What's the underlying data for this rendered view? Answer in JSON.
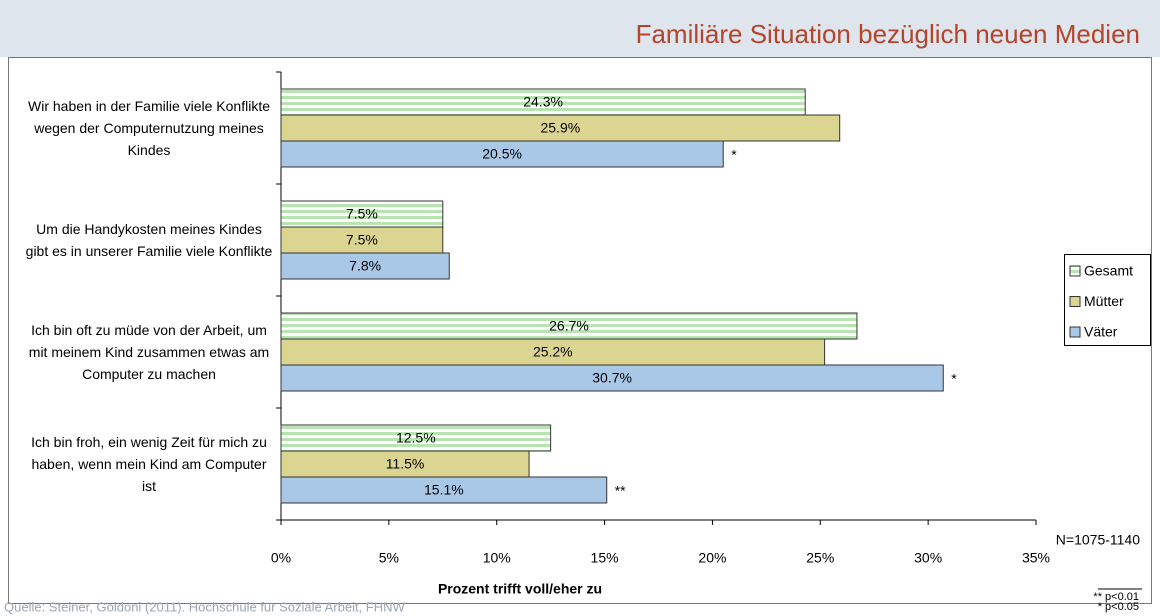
{
  "chart_data": {
    "type": "hbar",
    "title": "Familiäre Situation bezüglich neuen Medien",
    "categories": [
      "Wir haben in der Familie viele Konflikte wegen der Computernutzung meines Kindes",
      "Um die Handykosten meines Kindes gibt es in unserer Familie viele Konflikte",
      "Ich bin oft zu müde von der Arbeit, um mit meinem Kind zusammen etwas am Computer zu machen",
      "Ich bin froh, ein wenig Zeit für mich zu haben, wenn mein Kind am Computer ist"
    ],
    "series": [
      {
        "name": "Gesamt",
        "color": "#b8e4b2",
        "pattern": "stripes",
        "values": [
          24.3,
          7.5,
          26.7,
          12.5
        ],
        "value_labels": [
          "24.3%",
          "7.5%",
          "26.7%",
          "12.5%"
        ]
      },
      {
        "name": "Mütter",
        "color": "#dcd592",
        "values": [
          25.9,
          7.5,
          25.2,
          11.5
        ],
        "value_labels": [
          "25.9%",
          "7.5%",
          "25.2%",
          "11.5%"
        ]
      },
      {
        "name": "Väter",
        "color": "#a9c8e8",
        "values": [
          20.5,
          7.8,
          30.7,
          15.1
        ],
        "value_labels": [
          "20.5%",
          "7.8%",
          "30.7%",
          "15.1%"
        ],
        "markers": [
          "*",
          null,
          "*",
          "**"
        ]
      }
    ],
    "xlim": [
      0,
      35
    ],
    "xticks": [
      {
        "value": 0,
        "label": "0%"
      },
      {
        "value": 5,
        "label": "5%"
      },
      {
        "value": 10,
        "label": "10%"
      },
      {
        "value": 15,
        "label": "15%"
      },
      {
        "value": 20,
        "label": "20%"
      },
      {
        "value": 25,
        "label": "25%"
      },
      {
        "value": 30,
        "label": "30%"
      },
      {
        "value": 35,
        "label": "35%"
      }
    ],
    "x_label": "Prozent trifft voll/eher zu",
    "annotation": "N=1075-1140",
    "source": "Quelle: Steiner, Goldoni (2011). Hochschule für Soziale Arbeit, FHNW",
    "footnotes": [
      "** p<0.01",
      "* p<0.05"
    ],
    "legend": "right"
  }
}
